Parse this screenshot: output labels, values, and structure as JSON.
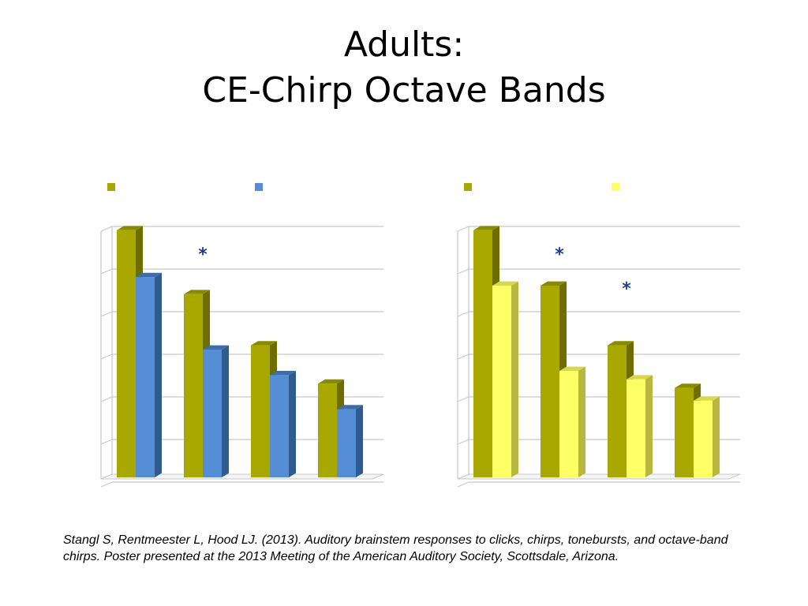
{
  "slide": {
    "title_line1": "Adults:",
    "title_line2": "CE-Chirp Octave Bands",
    "citation": "Stangl S, Rentmeester L, Hood LJ.  (2013).  Auditory brainstem responses to clicks, chirps, tonebursts, and octave-band chirps.  Poster presented at the 2013 Meeting of the American Auditory Society, Scottsdale, Arizona."
  },
  "colors": {
    "olive": "#a8a800",
    "olive_dark": "#6e6e00",
    "olive_top": "#8a8a00",
    "blue": "#558ed5",
    "blue_dark": "#2f5b8f",
    "blue_top": "#3e6ea8",
    "yellow": "#ffff66",
    "yellow_dark": "#b8b840",
    "yellow_top": "#d8d850",
    "grid": "#c8c8c8",
    "star": "#1f3f8f"
  },
  "chart_data": [
    {
      "type": "bar",
      "title": "",
      "xlabel": "",
      "ylabel": "",
      "categories": [
        "",
        "",
        "",
        ""
      ],
      "series": [
        {
          "values": [
            5.8,
            4.3,
            3.1,
            2.2
          ],
          "color": "olive"
        },
        {
          "values": [
            4.7,
            3.0,
            2.4,
            1.6
          ],
          "color": "blue"
        }
      ],
      "ylim": [
        0,
        6
      ],
      "grid": true,
      "legend_position": "top",
      "legend_entries": [
        "",
        ""
      ],
      "annotations": [
        {
          "text": "*",
          "category_index": 1,
          "value": 5.1
        }
      ]
    },
    {
      "type": "bar",
      "title": "",
      "xlabel": "",
      "ylabel": "",
      "categories": [
        "",
        "",
        "",
        ""
      ],
      "series": [
        {
          "values": [
            5.8,
            4.5,
            3.1,
            2.1
          ],
          "color": "olive"
        },
        {
          "values": [
            4.5,
            2.5,
            2.3,
            1.8
          ],
          "color": "yellow"
        }
      ],
      "ylim": [
        0,
        6
      ],
      "grid": true,
      "legend_position": "top",
      "legend_entries": [
        "",
        ""
      ],
      "annotations": [
        {
          "text": "*",
          "category_index": 1,
          "value": 5.1
        },
        {
          "text": "*",
          "category_index": 2,
          "value": 4.3
        }
      ]
    }
  ]
}
